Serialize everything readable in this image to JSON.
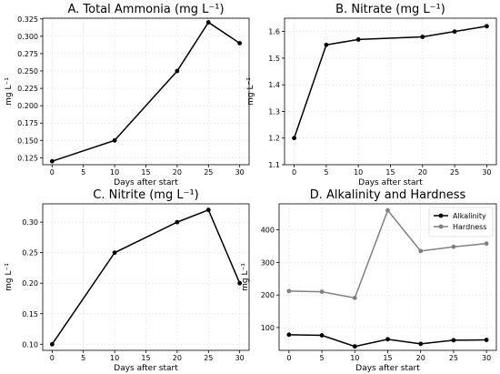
{
  "chart_data": [
    {
      "id": "A",
      "type": "line",
      "title": "A. Total Ammonia (mg L⁻¹)",
      "xlabel": "Days after start",
      "ylabel": "mg L⁻¹",
      "xlim": [
        -1.5,
        31.5
      ],
      "ylim": [
        0.115,
        0.326
      ],
      "xticks": [
        0,
        5,
        10,
        15,
        20,
        25,
        30
      ],
      "yticks": [
        0.125,
        0.15,
        0.175,
        0.2,
        0.225,
        0.25,
        0.275,
        0.3,
        0.325
      ],
      "ytick_decimals": 3,
      "grid": true,
      "series": [
        {
          "color": "#000000",
          "x": [
            0,
            10,
            20,
            25,
            30
          ],
          "y": [
            0.12,
            0.15,
            0.25,
            0.32,
            0.29
          ]
        }
      ]
    },
    {
      "id": "B",
      "type": "line",
      "title": "B. Nitrate (mg L⁻¹)",
      "xlabel": "Days after start",
      "ylabel": "mg L⁻¹",
      "xlim": [
        -1.5,
        31.5
      ],
      "ylim": [
        1.1,
        1.65
      ],
      "xticks": [
        0,
        5,
        10,
        15,
        20,
        25,
        30
      ],
      "yticks": [
        1.1,
        1.2,
        1.3,
        1.4,
        1.5,
        1.6
      ],
      "ytick_decimals": 1,
      "grid": true,
      "series": [
        {
          "color": "#000000",
          "x": [
            0,
            5,
            10,
            20,
            25,
            30
          ],
          "y": [
            1.2,
            1.55,
            1.57,
            1.58,
            1.6,
            1.62
          ]
        }
      ]
    },
    {
      "id": "C",
      "type": "line",
      "title": "C. Nitrite (mg L⁻¹)",
      "xlabel": "Days after start",
      "ylabel": "mg L⁻¹",
      "xlim": [
        -1.5,
        31.5
      ],
      "ylim": [
        0.09,
        0.33
      ],
      "xticks": [
        0,
        5,
        10,
        15,
        20,
        25,
        30
      ],
      "yticks": [
        0.1,
        0.15,
        0.2,
        0.25,
        0.3
      ],
      "ytick_decimals": 2,
      "grid": true,
      "series": [
        {
          "color": "#000000",
          "x": [
            0,
            10,
            20,
            25,
            30
          ],
          "y": [
            0.1,
            0.25,
            0.3,
            0.32,
            0.2
          ]
        }
      ]
    },
    {
      "id": "D",
      "type": "line",
      "title": "D. Alkalinity and Hardness",
      "xlabel": "Days after start",
      "ylabel": "mg L⁻¹",
      "xlim": [
        -1.5,
        31.5
      ],
      "ylim": [
        30,
        480
      ],
      "xticks": [
        0,
        5,
        10,
        15,
        20,
        25,
        30
      ],
      "yticks": [
        100,
        200,
        300,
        400
      ],
      "ytick_decimals": 0,
      "grid": true,
      "legend": "top-right",
      "series": [
        {
          "name": "Alkalinity",
          "color": "#000000",
          "x": [
            0,
            5,
            10,
            15,
            20,
            25,
            30
          ],
          "y": [
            78,
            76,
            42,
            64,
            50,
            61,
            62
          ]
        },
        {
          "name": "Hardness",
          "color": "#808080",
          "x": [
            0,
            5,
            10,
            15,
            20,
            25,
            30
          ],
          "y": [
            212,
            210,
            191,
            460,
            335,
            348,
            358
          ]
        }
      ]
    }
  ]
}
